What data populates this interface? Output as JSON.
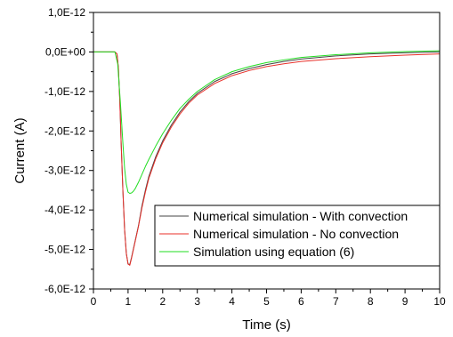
{
  "chart_data": {
    "type": "line",
    "title": "",
    "xlabel": "Time (s)",
    "ylabel": "Current (A)",
    "xlim": [
      0,
      10
    ],
    "ylim": [
      -6e-12,
      1e-12
    ],
    "x_ticks": [
      "0",
      "1",
      "2",
      "3",
      "4",
      "5",
      "6",
      "7",
      "8",
      "9",
      "10"
    ],
    "y_ticks": [
      "1,0E-12",
      "0,0E+00",
      "-1,0E-12",
      "-2,0E-12",
      "-3,0E-12",
      "-4,0E-12",
      "-5,0E-12",
      "-6,0E-12"
    ],
    "grid": false,
    "legend_position": "lower-right",
    "series": [
      {
        "name": "Numerical simulation - With convection",
        "color": "#444444",
        "x": [
          0,
          0.5,
          0.62,
          0.68,
          0.72,
          0.76,
          0.8,
          0.85,
          0.9,
          0.95,
          1.0,
          1.05,
          1.1,
          1.2,
          1.3,
          1.4,
          1.5,
          1.6,
          1.8,
          2.0,
          2.25,
          2.5,
          2.75,
          3.0,
          3.5,
          4.0,
          4.5,
          5.0,
          5.5,
          6.0,
          7.0,
          8.0,
          9.0,
          10.0
        ],
        "values": [
          0,
          0,
          0,
          -5e-14,
          -4e-13,
          -1.2e-12,
          -2.3e-12,
          -3.5e-12,
          -4.5e-12,
          -5.1e-12,
          -5.37e-12,
          -5.38e-12,
          -5.2e-12,
          -4.8e-12,
          -4.4e-12,
          -3.9e-12,
          -3.5e-12,
          -3.15e-12,
          -2.65e-12,
          -2.25e-12,
          -1.85e-12,
          -1.52e-12,
          -1.26e-12,
          -1.05e-12,
          -7.5e-13,
          -5.5e-13,
          -4.2e-13,
          -3.2e-13,
          -2.4e-13,
          -1.8e-13,
          -1e-13,
          -5e-14,
          -2e-14,
          0.0
        ]
      },
      {
        "name": "Numerical simulation - No convection",
        "color": "#e8302a",
        "x": [
          0,
          0.5,
          0.62,
          0.68,
          0.72,
          0.76,
          0.8,
          0.85,
          0.9,
          0.95,
          1.0,
          1.05,
          1.1,
          1.2,
          1.3,
          1.4,
          1.5,
          1.6,
          1.8,
          2.0,
          2.25,
          2.5,
          2.75,
          3.0,
          3.5,
          4.0,
          4.5,
          5.0,
          5.5,
          6.0,
          7.0,
          8.0,
          9.0,
          10.0
        ],
        "values": [
          0,
          0,
          0,
          -5e-14,
          -4e-13,
          -1.2e-12,
          -2.3e-12,
          -3.5e-12,
          -4.5e-12,
          -5.1e-12,
          -5.37e-12,
          -5.4e-12,
          -5.22e-12,
          -4.82e-12,
          -4.42e-12,
          -3.95e-12,
          -3.55e-12,
          -3.2e-12,
          -2.7e-12,
          -2.3e-12,
          -1.9e-12,
          -1.57e-12,
          -1.3e-12,
          -1.09e-12,
          -8e-13,
          -6e-13,
          -4.7e-13,
          -3.7e-13,
          -3e-13,
          -2.4e-13,
          -1.7e-13,
          -1.2e-13,
          -8e-14,
          -5e-14
        ]
      },
      {
        "name": "Simulation using equation (6)",
        "color": "#22dd22",
        "x": [
          0,
          0.5,
          0.62,
          0.7,
          0.78,
          0.85,
          0.9,
          0.95,
          1.0,
          1.05,
          1.1,
          1.15,
          1.2,
          1.3,
          1.4,
          1.5,
          1.6,
          1.8,
          2.0,
          2.25,
          2.5,
          2.75,
          3.0,
          3.5,
          4.0,
          4.5,
          5.0,
          5.5,
          6.0,
          7.0,
          8.0,
          9.0,
          10.0
        ],
        "values": [
          0,
          0,
          0,
          -3e-13,
          -1.3e-12,
          -2.3e-12,
          -2.95e-12,
          -3.35e-12,
          -3.55e-12,
          -3.58e-12,
          -3.57e-12,
          -3.53e-12,
          -3.47e-12,
          -3.3e-12,
          -3.1e-12,
          -2.9e-12,
          -2.72e-12,
          -2.38e-12,
          -2.07e-12,
          -1.73e-12,
          -1.43e-12,
          -1.2e-12,
          -1e-12,
          -7e-13,
          -5e-13,
          -3.7e-13,
          -2.7e-13,
          -2e-13,
          -1.4e-13,
          -7e-14,
          -2e-14,
          1e-14,
          3e-14
        ]
      }
    ]
  }
}
